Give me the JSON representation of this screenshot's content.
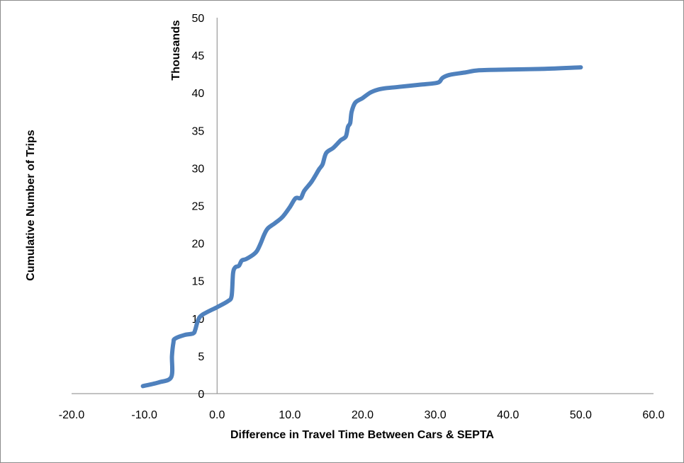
{
  "chart_data": {
    "type": "line",
    "title": "",
    "xlabel": "Difference in Travel Time Between Cars & SEPTA",
    "ylabel": "Cumulative Number of Trips",
    "y_units_label": "Thousands",
    "xlim": [
      -20,
      60
    ],
    "ylim": [
      0,
      50
    ],
    "x_ticks": [
      "-20.0",
      "-10.0",
      "0.0",
      "10.0",
      "20.0",
      "30.0",
      "40.0",
      "50.0",
      "60.0"
    ],
    "y_ticks": [
      "0",
      "5",
      "10",
      "15",
      "20",
      "25",
      "30",
      "35",
      "40",
      "45",
      "50"
    ],
    "grid": false,
    "legend": "none",
    "series": [
      {
        "color": "#4f81bd",
        "x": [
          -10.2,
          -8.0,
          -6.3,
          -6.2,
          -6.0,
          -5.8,
          -4.5,
          -3.3,
          -3.0,
          -2.6,
          -2.0,
          0.0,
          1.5,
          2.0,
          2.2,
          2.5,
          3.0,
          3.4,
          4.0,
          5.0,
          5.5,
          6.0,
          6.5,
          7.0,
          8.0,
          9.0,
          10.0,
          10.8,
          11.5,
          12.0,
          13.0,
          14.0,
          14.5,
          15.0,
          16.0,
          17.0,
          17.7,
          18.0,
          18.3,
          18.5,
          19.0,
          20.0,
          21.0,
          22.0,
          23.0,
          25.0,
          28.0,
          30.0,
          30.6,
          31.0,
          32.0,
          34.0,
          36.0,
          40.0,
          45.0,
          50.0
        ],
        "values": [
          1.0,
          1.5,
          2.2,
          5.0,
          6.8,
          7.3,
          7.8,
          8.0,
          8.5,
          9.8,
          10.5,
          11.5,
          12.3,
          13.0,
          16.0,
          16.8,
          17.0,
          17.7,
          17.9,
          18.5,
          19.0,
          20.0,
          21.2,
          22.0,
          22.7,
          23.5,
          24.8,
          26.0,
          26.0,
          27.0,
          28.2,
          29.8,
          30.5,
          32.0,
          32.7,
          33.7,
          34.2,
          35.5,
          36.0,
          37.5,
          38.7,
          39.3,
          40.0,
          40.4,
          40.6,
          40.8,
          41.1,
          41.3,
          41.5,
          42.0,
          42.4,
          42.7,
          43.0,
          43.1,
          43.2,
          43.4
        ]
      }
    ]
  }
}
